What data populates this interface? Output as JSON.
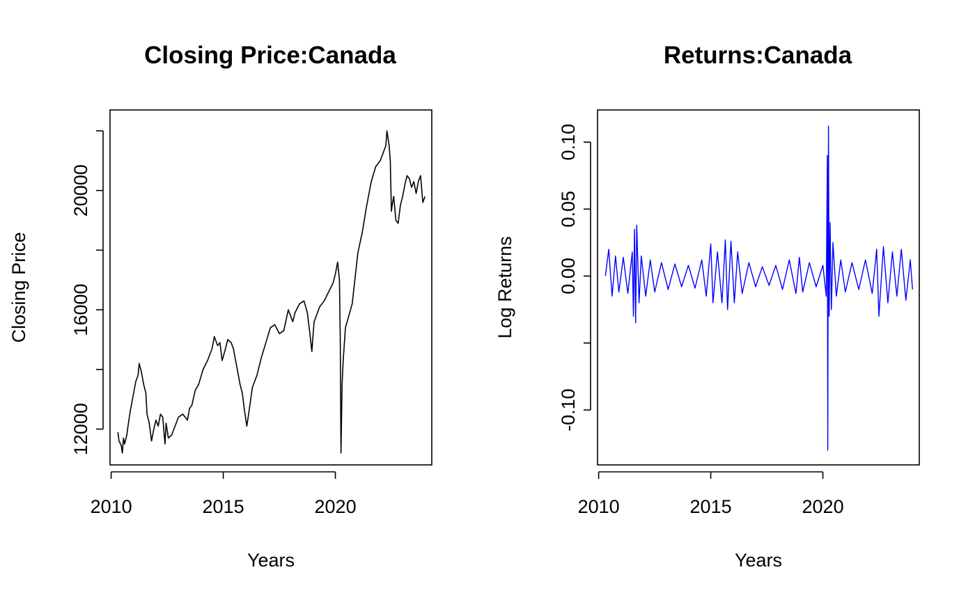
{
  "chart_data": [
    {
      "type": "line",
      "title": "Closing Price:Canada",
      "xlabel": "Years",
      "ylabel": "Closing Price",
      "xlim": [
        2009.95,
        2024.3
      ],
      "ylim": [
        10800,
        22700
      ],
      "xticks": [
        2010,
        2015,
        2020
      ],
      "xtick_labels": [
        "2010",
        "2015",
        "2020"
      ],
      "yticks": [
        12000,
        14000,
        16000,
        18000,
        20000,
        22000
      ],
      "ytick_labels": [
        "12000",
        "",
        "16000",
        "",
        "20000",
        ""
      ],
      "line_color": "#000000",
      "grid": false,
      "series": [
        {
          "x": [
            2010.3,
            2010.35,
            2010.45,
            2010.5,
            2010.55,
            2010.6,
            2010.7,
            2010.75,
            2010.85,
            2011.0,
            2011.1,
            2011.2,
            2011.25,
            2011.35,
            2011.45,
            2011.55,
            2011.6,
            2011.7,
            2011.8,
            2011.9,
            2012.0,
            2012.1,
            2012.2,
            2012.3,
            2012.4,
            2012.45,
            2012.55,
            2012.7,
            2012.9,
            2013.0,
            2013.2,
            2013.4,
            2013.5,
            2013.6,
            2013.75,
            2013.9,
            2014.1,
            2014.3,
            2014.5,
            2014.6,
            2014.75,
            2014.85,
            2014.95,
            2015.1,
            2015.2,
            2015.35,
            2015.45,
            2015.6,
            2015.75,
            2015.85,
            2015.95,
            2016.05,
            2016.15,
            2016.3,
            2016.5,
            2016.7,
            2016.9,
            2017.1,
            2017.3,
            2017.5,
            2017.7,
            2017.9,
            2018.1,
            2018.2,
            2018.4,
            2018.6,
            2018.75,
            2018.85,
            2018.95,
            2019.05,
            2019.3,
            2019.5,
            2019.7,
            2019.9,
            2020.0,
            2020.1,
            2020.18,
            2020.22,
            2020.25,
            2020.3,
            2020.35,
            2020.45,
            2020.6,
            2020.75,
            2020.9,
            2021.0,
            2021.2,
            2021.4,
            2021.6,
            2021.8,
            2022.0,
            2022.15,
            2022.25,
            2022.3,
            2022.4,
            2022.45,
            2022.5,
            2022.55,
            2022.6,
            2022.7,
            2022.8,
            2022.9,
            2023.0,
            2023.1,
            2023.2,
            2023.3,
            2023.4,
            2023.5,
            2023.6,
            2023.7,
            2023.8,
            2023.9,
            2024.0
          ],
          "y": [
            11900,
            11600,
            11450,
            11200,
            11700,
            11500,
            11800,
            12100,
            12600,
            13200,
            13600,
            13800,
            14200,
            13900,
            13500,
            13200,
            12500,
            12200,
            11600,
            12000,
            12300,
            12100,
            12500,
            12400,
            11500,
            12200,
            11700,
            11800,
            12200,
            12400,
            12500,
            12300,
            12700,
            12800,
            13300,
            13500,
            14000,
            14300,
            14700,
            15100,
            14800,
            14900,
            14300,
            14700,
            15000,
            14900,
            14700,
            14100,
            13500,
            13200,
            12600,
            12100,
            12600,
            13400,
            13800,
            14400,
            14900,
            15400,
            15500,
            15200,
            15300,
            16000,
            15600,
            15900,
            16200,
            16300,
            15900,
            15300,
            14600,
            15600,
            16100,
            16300,
            16600,
            16900,
            17200,
            17600,
            17000,
            15000,
            11200,
            13500,
            14300,
            15400,
            15800,
            16200,
            17200,
            17900,
            18600,
            19500,
            20300,
            20800,
            21000,
            21300,
            21500,
            22000,
            21500,
            21000,
            19300,
            19600,
            19800,
            19000,
            18900,
            19500,
            19800,
            20200,
            20500,
            20400,
            20100,
            20300,
            19900,
            20300,
            20500,
            19600,
            19800
          ]
        }
      ]
    },
    {
      "type": "line",
      "title": "Returns:Canada",
      "xlabel": "Years",
      "ylabel": "Log Returns",
      "xlim": [
        2009.95,
        2024.3
      ],
      "ylim": [
        -0.141,
        0.124
      ],
      "xticks": [
        2010,
        2015,
        2020
      ],
      "xtick_labels": [
        "2010",
        "2015",
        "2020"
      ],
      "yticks": [
        -0.1,
        -0.05,
        0.0,
        0.05,
        0.1
      ],
      "ytick_labels": [
        "-0.10",
        "",
        "0.00",
        "0.05",
        "0.10"
      ],
      "line_color": "#0000ff",
      "grid": false,
      "series": [
        {
          "x": [
            2010.3,
            2010.45,
            2010.6,
            2010.75,
            2010.9,
            2011.1,
            2011.3,
            2011.5,
            2011.55,
            2011.6,
            2011.65,
            2011.7,
            2011.8,
            2011.9,
            2012.1,
            2012.3,
            2012.5,
            2012.8,
            2013.1,
            2013.4,
            2013.7,
            2014.0,
            2014.3,
            2014.6,
            2014.8,
            2015.0,
            2015.1,
            2015.3,
            2015.5,
            2015.65,
            2015.75,
            2015.9,
            2016.05,
            2016.2,
            2016.4,
            2016.7,
            2017.0,
            2017.3,
            2017.6,
            2017.9,
            2018.2,
            2018.5,
            2018.8,
            2018.95,
            2019.1,
            2019.4,
            2019.7,
            2020.0,
            2020.15,
            2020.2,
            2020.22,
            2020.25,
            2020.28,
            2020.32,
            2020.38,
            2020.45,
            2020.6,
            2020.8,
            2021.0,
            2021.3,
            2021.6,
            2021.9,
            2022.2,
            2022.4,
            2022.5,
            2022.7,
            2022.9,
            2023.1,
            2023.3,
            2023.5,
            2023.7,
            2023.9,
            2024.0
          ],
          "y": [
            0.0,
            0.02,
            -0.015,
            0.015,
            -0.012,
            0.014,
            -0.013,
            0.018,
            -0.03,
            0.035,
            -0.035,
            0.038,
            -0.02,
            0.015,
            -0.015,
            0.012,
            -0.012,
            0.01,
            -0.01,
            0.009,
            -0.008,
            0.008,
            -0.009,
            0.012,
            -0.015,
            0.024,
            -0.02,
            0.018,
            -0.02,
            0.027,
            -0.025,
            0.026,
            -0.02,
            0.018,
            -0.013,
            0.01,
            -0.008,
            0.007,
            -0.007,
            0.008,
            -0.01,
            0.012,
            -0.013,
            0.014,
            -0.012,
            0.01,
            -0.008,
            0.008,
            -0.015,
            0.09,
            -0.13,
            0.112,
            -0.03,
            0.04,
            -0.025,
            0.025,
            -0.015,
            0.012,
            -0.012,
            0.01,
            -0.01,
            0.012,
            -0.013,
            0.02,
            -0.03,
            0.022,
            -0.02,
            0.018,
            -0.015,
            0.02,
            -0.018,
            0.012,
            -0.01
          ]
        }
      ]
    }
  ]
}
